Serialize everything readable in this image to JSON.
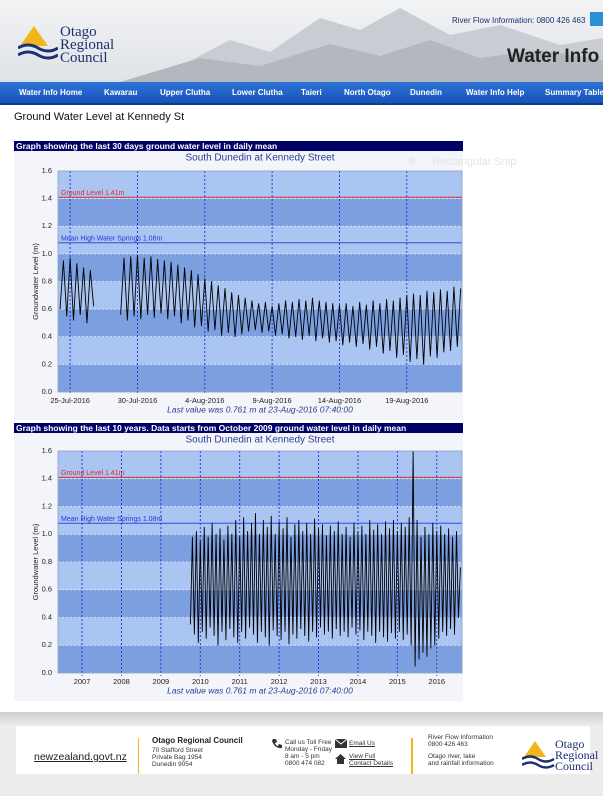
{
  "header": {
    "logo_lines": [
      "Otago",
      "Regional",
      "Council"
    ],
    "hotline": "River Flow Information: 0800 426 463",
    "site_title": "Water Info"
  },
  "nav": {
    "items": [
      "Water Info Home",
      "Kawarau",
      "Upper Clutha",
      "Lower Clutha",
      "Taieri",
      "North Otago",
      "Dunedin",
      "Water Info Help",
      "Summary Table"
    ]
  },
  "page_title": "Ground Water Level at Kennedy St",
  "overlay_text": "Rectangular Snip",
  "chart_data": [
    {
      "type": "line",
      "heading": "Graph showing the last 30 days ground water level in daily mean",
      "title": "South Dunedin at Kennedy Street",
      "ylabel": "Groundwater Level (m)",
      "footnote": "Last value was 0.761 m at 23-Aug-2016 07:40:00",
      "color": "#000000",
      "xlim": [
        -0.9,
        29.1
      ],
      "xticks": [
        {
          "value": 0,
          "label": "25-Jul-2016"
        },
        {
          "value": 5,
          "label": "30-Jul-2016"
        },
        {
          "value": 10,
          "label": "4-Aug-2016"
        },
        {
          "value": 15,
          "label": "9-Aug-2016"
        },
        {
          "value": 20,
          "label": "14-Aug-2016"
        },
        {
          "value": 25,
          "label": "19-Aug-2016"
        }
      ],
      "ylim": [
        0,
        1.6
      ],
      "yticks": [
        {
          "value": 0,
          "label": "0.0"
        },
        0.2,
        0.4,
        0.6,
        0.8,
        {
          "value": 1,
          "label": "1.0"
        },
        1.2,
        1.4,
        1.6
      ],
      "reference_lines": [
        {
          "label": "Ground Level 1.41m",
          "value": 1.41,
          "color": "#e02828"
        },
        {
          "label": "Mean High Water Springs 1.08m",
          "value": 1.08,
          "color": "#2838d8"
        }
      ],
      "x": [
        -0.75,
        -0.5,
        -0.25,
        0,
        0.25,
        0.5,
        0.75,
        1,
        1.25,
        1.5,
        1.75,
        2.5,
        3.75,
        4,
        4.25,
        4.5,
        4.75,
        5,
        5.25,
        5.5,
        5.75,
        6,
        6.25,
        6.5,
        6.75,
        7,
        7.25,
        7.5,
        7.75,
        8,
        8.25,
        8.5,
        8.75,
        9,
        9.25,
        9.5,
        9.75,
        10,
        10.25,
        10.5,
        10.75,
        11,
        11.25,
        11.5,
        11.75,
        12,
        12.25,
        12.5,
        12.75,
        13,
        13.25,
        13.5,
        13.75,
        14,
        14.25,
        14.5,
        14.75,
        15,
        15.25,
        15.5,
        15.75,
        16,
        16.25,
        16.5,
        16.75,
        17,
        17.25,
        17.5,
        17.75,
        18,
        18.25,
        18.5,
        18.75,
        19,
        19.25,
        19.5,
        19.75,
        20,
        20.25,
        20.5,
        20.75,
        21,
        21.25,
        21.5,
        21.75,
        22,
        22.25,
        22.5,
        22.75,
        23,
        23.25,
        23.5,
        23.75,
        24,
        24.25,
        24.5,
        24.75,
        25,
        25.25,
        25.5,
        25.75,
        26,
        26.25,
        26.5,
        26.75,
        27,
        27.25,
        27.5,
        27.75,
        28,
        28.25,
        28.5,
        28.75,
        29
      ],
      "values": [
        0.6,
        0.95,
        0.55,
        0.97,
        0.52,
        0.93,
        0.56,
        0.9,
        0.5,
        0.88,
        0.62,
        null,
        0.56,
        0.97,
        0.52,
        0.98,
        0.55,
        0.99,
        0.53,
        0.97,
        0.56,
        0.98,
        0.54,
        0.96,
        0.57,
        0.95,
        0.53,
        0.94,
        0.55,
        0.92,
        0.5,
        0.9,
        0.52,
        0.88,
        0.47,
        0.85,
        0.48,
        0.82,
        0.44,
        0.8,
        0.45,
        0.77,
        0.41,
        0.75,
        0.43,
        0.72,
        0.4,
        0.7,
        0.42,
        0.68,
        0.44,
        0.66,
        0.45,
        0.64,
        0.43,
        0.65,
        0.44,
        0.62,
        0.41,
        0.64,
        0.42,
        0.66,
        0.39,
        0.65,
        0.4,
        0.67,
        0.38,
        0.66,
        0.41,
        0.68,
        0.37,
        0.66,
        0.39,
        0.65,
        0.36,
        0.64,
        0.37,
        0.63,
        0.34,
        0.64,
        0.36,
        0.62,
        0.33,
        0.65,
        0.35,
        0.63,
        0.31,
        0.66,
        0.33,
        0.64,
        0.28,
        0.67,
        0.3,
        0.66,
        0.25,
        0.68,
        0.27,
        0.7,
        0.22,
        0.71,
        0.24,
        0.7,
        0.2,
        0.73,
        0.26,
        0.72,
        0.25,
        0.74,
        0.29,
        0.73,
        0.3,
        0.76,
        0.33,
        0.75
      ]
    },
    {
      "type": "line",
      "heading": "Graph showing the last 10 years. Data starts from October 2009 ground water level in daily mean",
      "title": "South Dunedin at Kennedy Street",
      "ylabel": "Groundwater Level (m)",
      "footnote": "Last value was 0.761 m at 23-Aug-2016 07:40:00",
      "color": "#000000",
      "xlim": [
        2006.39,
        2016.64
      ],
      "xticks": [
        2007,
        2008,
        2009,
        2010,
        2011,
        2012,
        2013,
        2014,
        2015,
        2016
      ],
      "ylim": [
        0,
        1.6
      ],
      "yticks": [
        {
          "value": 0,
          "label": "0.0"
        },
        0.2,
        0.4,
        0.6,
        0.8,
        {
          "value": 1,
          "label": "1.0"
        },
        1.2,
        1.4,
        1.6
      ],
      "reference_lines": [
        {
          "label": "Ground Level 1.41m",
          "value": 1.41,
          "color": "#e02828"
        },
        {
          "label": "Mean High Water Springs 1.08m",
          "value": 1.08,
          "color": "#2838d8"
        }
      ],
      "x": [
        2009.75,
        2009.8,
        2009.85,
        2009.9,
        2009.95,
        2010,
        2010.05,
        2010.1,
        2010.15,
        2010.2,
        2010.25,
        2010.3,
        2010.35,
        2010.4,
        2010.45,
        2010.5,
        2010.55,
        2010.6,
        2010.65,
        2010.7,
        2010.75,
        2010.8,
        2010.85,
        2010.9,
        2010.95,
        2011,
        2011.05,
        2011.1,
        2011.15,
        2011.2,
        2011.25,
        2011.3,
        2011.35,
        2011.4,
        2011.45,
        2011.5,
        2011.55,
        2011.6,
        2011.65,
        2011.7,
        2011.75,
        2011.8,
        2011.85,
        2011.9,
        2011.95,
        2012,
        2012.05,
        2012.1,
        2012.15,
        2012.2,
        2012.25,
        2012.3,
        2012.35,
        2012.4,
        2012.45,
        2012.5,
        2012.55,
        2012.6,
        2012.65,
        2012.7,
        2012.75,
        2012.8,
        2012.85,
        2012.9,
        2012.95,
        2013,
        2013.05,
        2013.1,
        2013.15,
        2013.2,
        2013.25,
        2013.3,
        2013.35,
        2013.4,
        2013.45,
        2013.5,
        2013.55,
        2013.6,
        2013.65,
        2013.7,
        2013.75,
        2013.8,
        2013.85,
        2013.9,
        2013.95,
        2014,
        2014.05,
        2014.1,
        2014.15,
        2014.2,
        2014.25,
        2014.3,
        2014.35,
        2014.4,
        2014.45,
        2014.5,
        2014.55,
        2014.6,
        2014.65,
        2014.7,
        2014.75,
        2014.8,
        2014.85,
        2014.9,
        2014.95,
        2015,
        2015.05,
        2015.1,
        2015.15,
        2015.2,
        2015.25,
        2015.3,
        2015.35,
        2015.4,
        2015.45,
        2015.5,
        2015.55,
        2015.6,
        2015.65,
        2015.7,
        2015.75,
        2015.8,
        2015.85,
        2015.9,
        2015.95,
        2016,
        2016.05,
        2016.1,
        2016.15,
        2016.2,
        2016.25,
        2016.3,
        2016.35,
        2016.4,
        2016.45,
        2016.5,
        2016.55,
        2016.6
      ],
      "values": [
        0.35,
        0.98,
        0.28,
        1.02,
        0.22,
        0.95,
        0.3,
        1.05,
        0.25,
        0.98,
        0.33,
        1.08,
        0.27,
        1.0,
        0.2,
        1.04,
        0.3,
        0.96,
        0.24,
        1.06,
        0.32,
        1.0,
        0.26,
        1.1,
        0.22,
        0.98,
        0.3,
        1.12,
        0.25,
        1.02,
        0.33,
        1.08,
        0.28,
        1.15,
        0.22,
        1.0,
        0.3,
        1.1,
        0.26,
        1.05,
        0.2,
        1.13,
        0.31,
        1.0,
        0.27,
        1.09,
        0.24,
        1.04,
        0.3,
        1.12,
        0.21,
        0.98,
        0.28,
        1.07,
        0.25,
        1.1,
        0.32,
        1.02,
        0.27,
        1.08,
        0.23,
        1.0,
        0.3,
        1.11,
        0.26,
        1.04,
        0.33,
        1.07,
        0.28,
        0.99,
        0.3,
        1.06,
        0.25,
        1.02,
        0.32,
        1.09,
        0.27,
        1.0,
        0.3,
        1.05,
        0.26,
        0.98,
        0.33,
        1.08,
        0.28,
        1.02,
        0.31,
        1.06,
        0.24,
        1.0,
        0.3,
        1.1,
        0.27,
        1.03,
        0.22,
        1.07,
        0.3,
        1.0,
        0.26,
        1.09,
        0.23,
        1.04,
        0.29,
        1.1,
        0.25,
        1.02,
        0.3,
        1.08,
        0.24,
        1.05,
        0.28,
        1.12,
        0.2,
        1.6,
        0.05,
        1.1,
        0.1,
        0.98,
        0.15,
        1.05,
        0.12,
        1.0,
        0.18,
        1.08,
        0.2,
        1.02,
        0.25,
        1.06,
        0.3,
        1.0,
        0.27,
        1.04,
        0.32,
        0.98,
        0.28,
        1.02,
        0.4,
        0.761
      ]
    }
  ],
  "footer": {
    "gov_link": "newzealand.govt.nz",
    "council": {
      "name": "Otago Regional Council",
      "address": [
        "70 Stafford Street",
        "Private Bag 1954",
        "Dunedin 9054"
      ]
    },
    "phone": [
      "Call us Toll Free",
      "Monday - Friday",
      "8 am - 5 pm",
      "0800 474 082"
    ],
    "email": "Email Us",
    "contact": [
      "View Full",
      "Contact Details"
    ],
    "river": [
      "River Flow Information",
      "0800 426 463",
      "Otago river, lake",
      "and rainfall information"
    ],
    "logo_lines": [
      "Otago",
      "Regional",
      "Council"
    ]
  }
}
